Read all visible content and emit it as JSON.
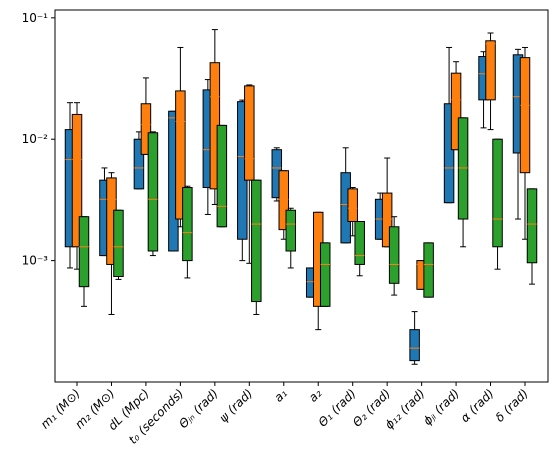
{
  "chart_data": {
    "type": "box",
    "categories": [
      "m₁ (M⊙)",
      "m₂ (M⊙)",
      "dL (Mpc)",
      "t₀ (seconds)",
      "Θⱼₙ (rad)",
      "ψ (rad)",
      "a₁",
      "a₂",
      "Θ₁ (rad)",
      "Θ₂ (rad)",
      "ϕ₁₂ (rad)",
      "ϕⱼₗ (rad)",
      "α (rad)",
      "δ (rad)"
    ],
    "log_y": true,
    "ylim": [
      0.0001,
      0.116
    ],
    "yticks": [
      {
        "value": 0.001,
        "label": "10⁻³"
      },
      {
        "value": 0.01,
        "label": "10⁻²"
      },
      {
        "value": 0.1,
        "label": "10⁻¹"
      }
    ],
    "median_color": "#ff7f0e",
    "series": [
      {
        "color": "#1f77b4",
        "whishi": [
          0.02,
          0.0058,
          0.0115,
          0.017,
          0.031,
          0.021,
          0.0085,
          0.00087,
          0.0085,
          0.0036,
          0.00038,
          0.057,
          0.0526,
          0.055
        ],
        "q3": [
          0.012,
          0.0046,
          0.01,
          0.017,
          0.0255,
          0.0204,
          0.0082,
          0.00087,
          0.0053,
          0.0032,
          0.00027,
          0.0196,
          0.048,
          0.0496
        ],
        "median": [
          0.0068,
          0.0032,
          0.0058,
          0.015,
          0.0082,
          0.0072,
          0.0058,
          0.00067,
          0.0029,
          0.0022,
          0.00019,
          0.0058,
          0.0346,
          0.0224
        ],
        "q1": [
          0.0013,
          0.0011,
          0.0039,
          0.0012,
          0.004,
          0.0015,
          0.0033,
          0.0005,
          0.0014,
          0.0015,
          0.00015,
          0.003,
          0.0211,
          0.0077
        ],
        "whislo": [
          0.00087,
          0.0011,
          0.0039,
          0.0012,
          0.0024,
          0.001,
          0.0031,
          0.0005,
          0.0014,
          0.0015,
          0.00014,
          0.003,
          0.0124,
          0.0022
        ]
      },
      {
        "color": "#ff7f0e",
        "whishi": [
          0.02,
          0.0053,
          0.032,
          0.057,
          0.08,
          0.028,
          0.0055,
          0.0025,
          0.004,
          0.007,
          0.001,
          0.0435,
          0.075,
          0.057
        ],
        "q3": [
          0.016,
          0.0048,
          0.0196,
          0.025,
          0.0427,
          0.0275,
          0.0055,
          0.0025,
          0.0039,
          0.0036,
          0.001,
          0.035,
          0.0647,
          0.047
        ],
        "median": [
          0.0068,
          0.0032,
          0.0132,
          0.014,
          0.0224,
          0.0069,
          0.0032,
          0.00067,
          0.0027,
          0.0022,
          0.00093,
          0.0211,
          0.061,
          0.019
        ],
        "q1": [
          0.0013,
          0.00093,
          0.0075,
          0.0022,
          0.0039,
          0.0046,
          0.0018,
          0.00042,
          0.0021,
          0.0013,
          0.00058,
          0.0082,
          0.0211,
          0.0053
        ],
        "whislo": [
          0.00085,
          0.00036,
          0.0075,
          0.0019,
          0.0029,
          0.00095,
          0.0015,
          0.00027,
          0.0016,
          0.0013,
          0.00058,
          0.0082,
          0.012,
          0.0015
        ]
      },
      {
        "color": "#2ca02c",
        "whishi": [
          0.0023,
          0.0026,
          0.0115,
          0.0041,
          0.013,
          0.0046,
          0.0027,
          0.0014,
          0.0021,
          0.0023,
          0.0014,
          0.015,
          0.01,
          0.0039
        ],
        "q3": [
          0.0023,
          0.0026,
          0.0113,
          0.004,
          0.013,
          0.0046,
          0.0026,
          0.0014,
          0.0021,
          0.0019,
          0.0014,
          0.015,
          0.01,
          0.0039
        ],
        "median": [
          0.0013,
          0.0013,
          0.0032,
          0.0017,
          0.0028,
          0.002,
          0.002,
          0.00093,
          0.0011,
          0.00093,
          0.00093,
          0.0058,
          0.0022,
          0.002
        ],
        "q1": [
          0.00061,
          0.00074,
          0.0012,
          0.001,
          0.0019,
          0.00046,
          0.0012,
          0.00042,
          0.00093,
          0.00065,
          0.0005,
          0.0022,
          0.0013,
          0.00096
        ],
        "whislo": [
          0.00042,
          0.0007,
          0.0011,
          0.00072,
          0.0019,
          0.00036,
          0.00087,
          0.00042,
          0.00075,
          0.00052,
          0.0005,
          0.0013,
          0.00085,
          0.00064
        ]
      }
    ]
  }
}
